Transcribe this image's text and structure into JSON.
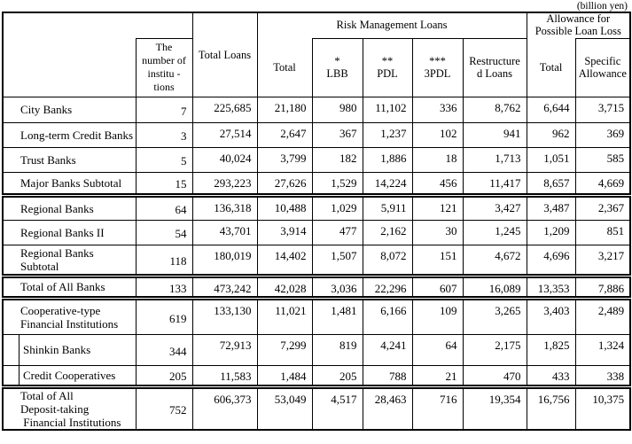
{
  "unit_note": "(billion yen)",
  "table": {
    "header": {
      "institutions": "The\nnumber of\ninstitu -\ntions",
      "total_loans": "Total Loans",
      "risk_group": "Risk Management Loans",
      "risk_total": "Total",
      "lbb": "*\nLBB",
      "pdl": "**\nPDL",
      "tpdl": "***\n3PDL",
      "restructured": "Restructure\nd Loans",
      "allowance_group": "Allowance for\nPossible Loan Loss",
      "allowance_total": "Total",
      "specific_allowance": "Specific\nAllowance"
    },
    "rows": [
      {
        "label": "City Banks",
        "separator_above": false,
        "indent": false,
        "values": [
          "7",
          "225,685",
          "21,180",
          "980",
          "11,102",
          "336",
          "8,762",
          "6,644",
          "3,715"
        ]
      },
      {
        "label": "Long-term Credit Banks",
        "separator_above": false,
        "indent": false,
        "values": [
          "3",
          "27,514",
          "2,647",
          "367",
          "1,237",
          "102",
          "941",
          "962",
          "369"
        ]
      },
      {
        "label": "Trust Banks",
        "separator_above": false,
        "indent": false,
        "values": [
          "5",
          "40,024",
          "3,799",
          "182",
          "1,886",
          "18",
          "1,713",
          "1,051",
          "585"
        ]
      },
      {
        "label": "Major Banks Subtotal",
        "separator_above": false,
        "indent": false,
        "values": [
          "15",
          "293,223",
          "27,626",
          "1,529",
          "14,224",
          "456",
          "11,417",
          "8,657",
          "4,669"
        ]
      },
      {
        "label": "Regional Banks",
        "separator_above": true,
        "indent": false,
        "values": [
          "64",
          "136,318",
          "10,488",
          "1,029",
          "5,911",
          "121",
          "3,427",
          "3,487",
          "2,367"
        ]
      },
      {
        "label": "Regional Banks II",
        "separator_above": false,
        "indent": false,
        "values": [
          "54",
          "43,701",
          "3,914",
          "477",
          "2,162",
          "30",
          "1,245",
          "1,209",
          "851"
        ]
      },
      {
        "label": "Regional Banks\nSubtotal",
        "separator_above": false,
        "indent": false,
        "values": [
          "118",
          "180,019",
          "14,402",
          "1,507",
          "8,072",
          "151",
          "4,672",
          "4,696",
          "3,217"
        ]
      },
      {
        "label": "Total of All Banks",
        "separator_above": true,
        "indent": false,
        "values": [
          "133",
          "473,242",
          "42,028",
          "3,036",
          "22,296",
          "607",
          "16,089",
          "13,353",
          "7,886"
        ]
      },
      {
        "label": "Cooperative-type\nFinancial Institutions",
        "separator_above": true,
        "indent": false,
        "values": [
          "619",
          "133,130",
          "11,021",
          "1,481",
          "6,166",
          "109",
          "3,265",
          "3,403",
          "2,489"
        ]
      },
      {
        "label": "Shinkin Banks",
        "separator_above": false,
        "indent": true,
        "values": [
          "344",
          "72,913",
          "7,299",
          "819",
          "4,241",
          "64",
          "2,175",
          "1,825",
          "1,324"
        ]
      },
      {
        "label": "Credit Cooperatives",
        "separator_above": false,
        "indent": true,
        "values": [
          "205",
          "11,583",
          "1,484",
          "205",
          "788",
          "21",
          "470",
          "433",
          "338"
        ]
      },
      {
        "label": "Total of All\nDeposit-taking\n Financial Institutions",
        "separator_above": true,
        "indent": false,
        "values": [
          "752",
          "606,373",
          "53,049",
          "4,517",
          "28,463",
          "716",
          "19,354",
          "16,756",
          "10,375"
        ]
      }
    ]
  }
}
